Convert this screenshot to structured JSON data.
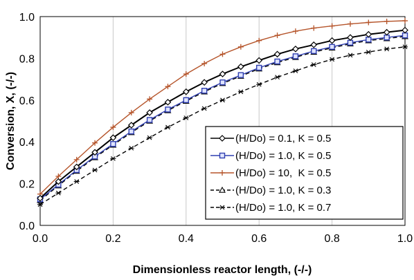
{
  "chart_data": {
    "type": "line",
    "xlabel": "Dimensionless reactor length, (-/-)",
    "ylabel": "Conversion, X, (-/-)",
    "xlim": [
      0.0,
      1.0
    ],
    "ylim": [
      0.0,
      1.0
    ],
    "x_ticks": [
      "0.0",
      "0.2",
      "0.4",
      "0.6",
      "0.8",
      "1.0"
    ],
    "y_ticks": [
      "0.0",
      "0.2",
      "0.4",
      "0.6",
      "0.8",
      "1.0"
    ],
    "grid": "vertical",
    "legend_position": "bottom-right",
    "x": [
      0.0,
      0.05,
      0.1,
      0.15,
      0.2,
      0.25,
      0.3,
      0.35,
      0.4,
      0.45,
      0.5,
      0.55,
      0.6,
      0.65,
      0.7,
      0.75,
      0.8,
      0.85,
      0.9,
      0.95,
      1.0
    ],
    "series": [
      {
        "name": "(H/Do) = 0.1, K = 0.5",
        "color": "#000000",
        "marker": "diamond",
        "dash": "solid",
        "values": [
          0.13,
          0.21,
          0.28,
          0.35,
          0.42,
          0.48,
          0.54,
          0.59,
          0.64,
          0.685,
          0.725,
          0.76,
          0.79,
          0.82,
          0.845,
          0.865,
          0.885,
          0.9,
          0.915,
          0.925,
          0.935
        ]
      },
      {
        "name": "(H/Do) = 1.0, K = 0.5",
        "color": "#2f3fb0",
        "marker": "square",
        "dash": "solid",
        "values": [
          0.125,
          0.195,
          0.265,
          0.33,
          0.39,
          0.45,
          0.505,
          0.555,
          0.6,
          0.645,
          0.685,
          0.72,
          0.755,
          0.785,
          0.81,
          0.835,
          0.855,
          0.875,
          0.89,
          0.9,
          0.91
        ]
      },
      {
        "name": "(H/Do) = 10,  K = 0.5",
        "color": "#b5542a",
        "marker": "plus",
        "dash": "solid",
        "values": [
          0.15,
          0.235,
          0.315,
          0.395,
          0.47,
          0.54,
          0.605,
          0.665,
          0.725,
          0.775,
          0.82,
          0.855,
          0.885,
          0.91,
          0.93,
          0.945,
          0.955,
          0.965,
          0.972,
          0.977,
          0.98
        ]
      },
      {
        "name": "(H/Do) = 1.0, K = 0.3",
        "color": "#000000",
        "marker": "triangle",
        "dash": "dashed",
        "values": [
          0.12,
          0.19,
          0.26,
          0.325,
          0.385,
          0.445,
          0.5,
          0.55,
          0.595,
          0.64,
          0.68,
          0.715,
          0.75,
          0.78,
          0.805,
          0.83,
          0.85,
          0.87,
          0.885,
          0.895,
          0.905
        ]
      },
      {
        "name": "(H/Do) = 1.0, K = 0.7",
        "color": "#000000",
        "marker": "asterisk",
        "dash": "dashed",
        "values": [
          0.1,
          0.155,
          0.21,
          0.265,
          0.32,
          0.37,
          0.42,
          0.47,
          0.515,
          0.56,
          0.6,
          0.64,
          0.675,
          0.71,
          0.74,
          0.77,
          0.795,
          0.815,
          0.83,
          0.845,
          0.855
        ]
      }
    ]
  }
}
